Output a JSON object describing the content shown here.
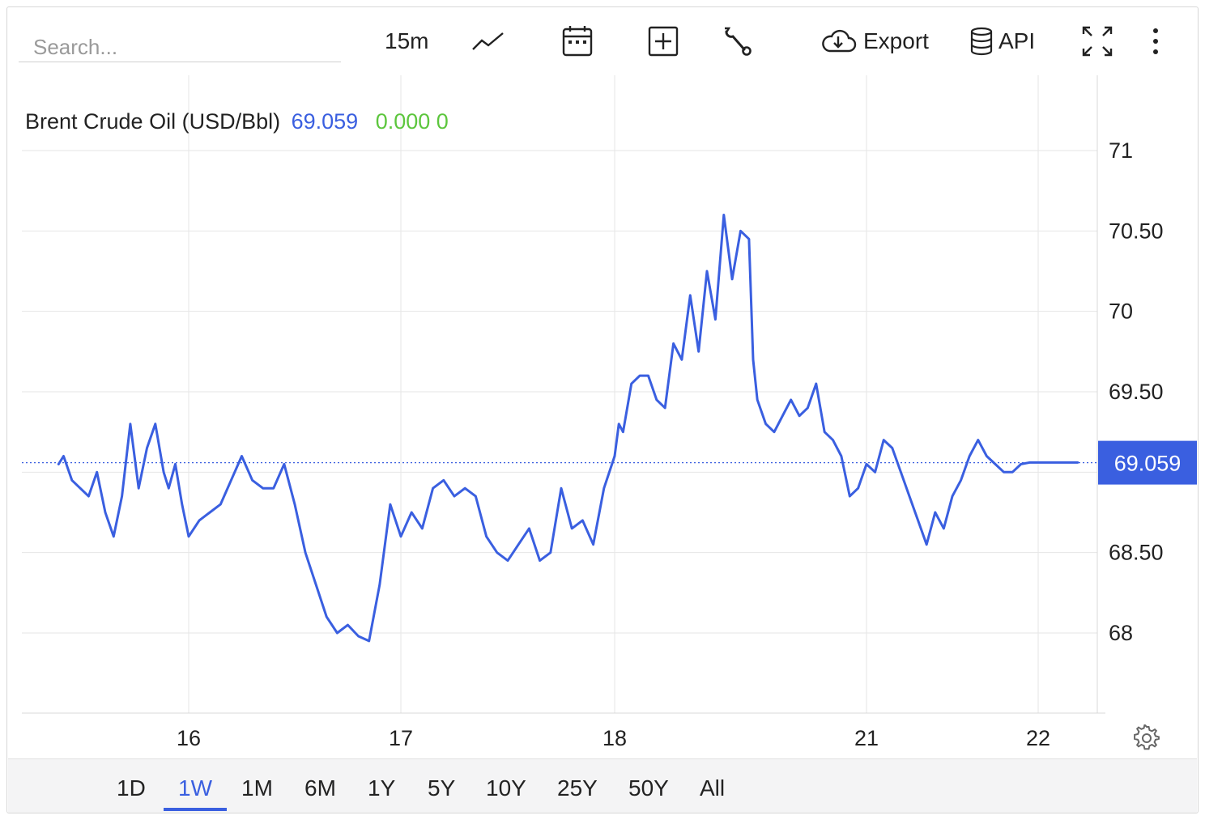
{
  "toolbar": {
    "search_placeholder": "Search...",
    "interval": "15m",
    "export_label": "Export",
    "api_label": "API"
  },
  "legend": {
    "name": "Brent Crude Oil (USD/Bbl)",
    "value": "69.059",
    "change": "0.000 0"
  },
  "colors": {
    "line": "#3a5fe0",
    "change": "#5cc63d",
    "grid": "#e6e6e6",
    "active_range": "#3a5fe0"
  },
  "ranges": [
    "1D",
    "1W",
    "1M",
    "6M",
    "1Y",
    "5Y",
    "10Y",
    "25Y",
    "50Y",
    "All"
  ],
  "active_range": "1W",
  "chart_data": {
    "type": "line",
    "series_name": "Brent Crude Oil (USD/Bbl)",
    "x_ticks": [
      "16",
      "17",
      "18",
      "21",
      "22"
    ],
    "y_ticks": [
      68,
      68.5,
      69,
      69.5,
      70,
      70.5,
      71
    ],
    "y_tick_labels": [
      "68",
      "68.50",
      "",
      "69.50",
      "70",
      "70.50",
      "71"
    ],
    "ylim": [
      67.5,
      71.5
    ],
    "current_value": 69.059,
    "current_label": "69.059",
    "grid": true,
    "x": [
      15.22,
      15.25,
      15.3,
      15.35,
      15.4,
      15.45,
      15.5,
      15.55,
      15.6,
      15.65,
      15.7,
      15.75,
      15.8,
      15.85,
      15.88,
      15.92,
      15.96,
      16.0,
      16.05,
      16.1,
      16.15,
      16.2,
      16.25,
      16.3,
      16.35,
      16.4,
      16.45,
      16.5,
      16.55,
      16.6,
      16.65,
      16.7,
      16.75,
      16.8,
      16.85,
      16.9,
      16.95,
      17.0,
      17.05,
      17.1,
      17.15,
      17.2,
      17.25,
      17.3,
      17.35,
      17.4,
      17.45,
      17.5,
      17.55,
      17.6,
      17.65,
      17.7,
      17.75,
      17.8,
      17.85,
      17.9,
      17.95,
      18.0,
      18.05,
      18.1,
      18.2,
      18.3,
      18.4,
      18.5,
      18.6,
      18.7,
      18.8,
      18.9,
      19.0,
      19.1,
      19.2,
      19.3,
      19.4,
      19.5,
      19.6,
      19.65,
      19.7,
      19.8,
      19.9,
      20.0,
      20.1,
      20.2,
      20.3,
      20.4,
      20.5,
      20.6,
      20.7,
      20.8,
      20.9,
      21.0,
      21.05,
      21.1,
      21.15,
      21.2,
      21.25,
      21.3,
      21.35,
      21.4,
      21.45,
      21.5,
      21.55,
      21.6,
      21.65,
      21.7,
      21.75,
      21.8,
      21.85,
      21.9,
      21.95,
      22.0,
      22.05,
      22.1,
      22.15,
      22.2
    ],
    "values": [
      69.05,
      69.1,
      68.95,
      68.9,
      68.85,
      69.0,
      68.75,
      68.6,
      68.85,
      69.3,
      68.9,
      69.15,
      69.3,
      69.0,
      68.9,
      69.05,
      68.8,
      68.6,
      68.7,
      68.75,
      68.8,
      68.95,
      69.1,
      68.95,
      68.9,
      68.9,
      69.05,
      68.8,
      68.5,
      68.3,
      68.1,
      68.0,
      68.05,
      67.98,
      67.95,
      68.3,
      68.8,
      68.6,
      68.75,
      68.65,
      68.9,
      68.95,
      68.85,
      68.9,
      68.85,
      68.6,
      68.5,
      68.45,
      68.55,
      68.65,
      68.45,
      68.5,
      68.9,
      68.65,
      68.7,
      68.55,
      68.9,
      69.1,
      69.3,
      69.25,
      69.55,
      69.6,
      69.6,
      69.45,
      69.4,
      69.8,
      69.7,
      70.1,
      69.75,
      70.25,
      69.95,
      70.6,
      70.2,
      70.5,
      70.45,
      69.7,
      69.45,
      69.3,
      69.25,
      69.35,
      69.45,
      69.35,
      69.4,
      69.55,
      69.25,
      69.2,
      69.1,
      68.85,
      68.9,
      69.05,
      69.0,
      69.2,
      69.15,
      69.0,
      68.85,
      68.7,
      68.55,
      68.75,
      68.65,
      68.85,
      68.95,
      69.1,
      69.2,
      69.1,
      69.05,
      69.0,
      69.0,
      69.05,
      69.06,
      69.06,
      69.06,
      69.06,
      69.06,
      69.06
    ]
  }
}
